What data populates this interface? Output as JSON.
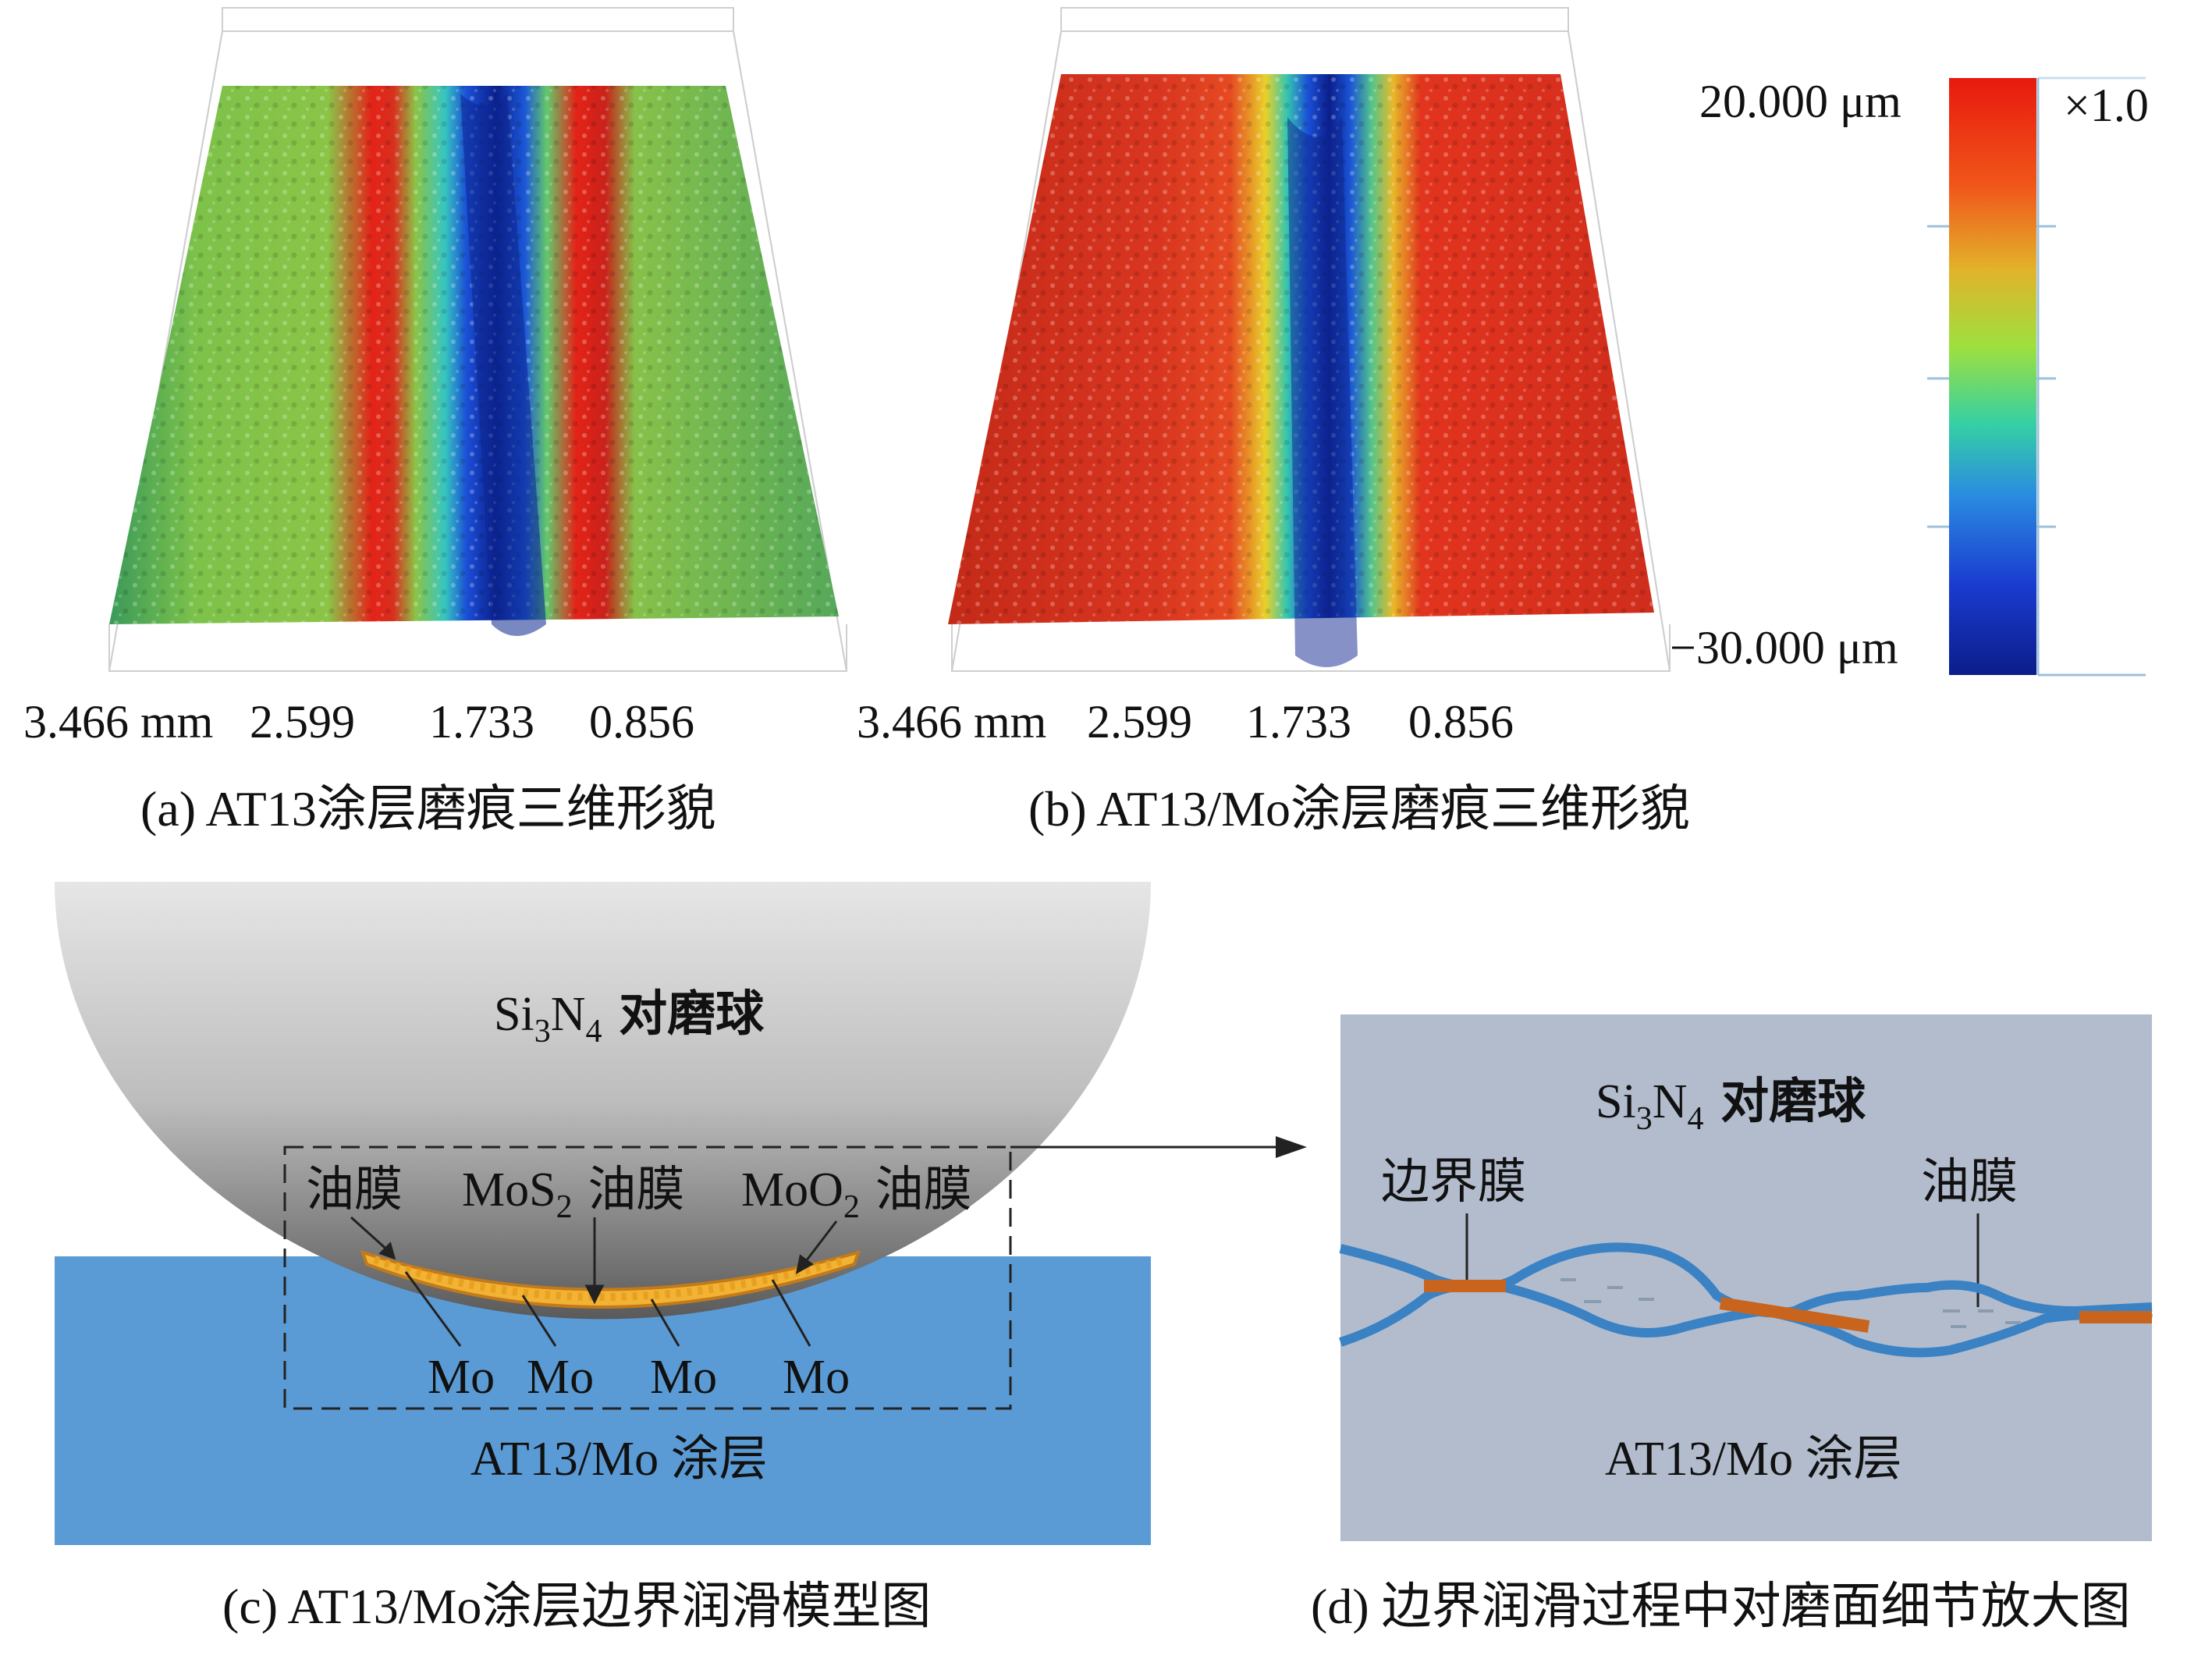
{
  "panel_a": {
    "axis_ticks": [
      "3.466 mm",
      "2.599",
      "1.733",
      "0.856"
    ],
    "caption": "(a) AT13涂层磨痕三维形貌"
  },
  "panel_b": {
    "axis_ticks": [
      "3.466 mm",
      "2.599",
      "1.733",
      "0.856"
    ],
    "caption": "(b) AT13/Mo涂层磨痕三维形貌"
  },
  "colorbar": {
    "max_label": "20.000 μm",
    "min_label": "−30.000 μm",
    "scale_label": "×1.0",
    "colors": [
      "#e8190e",
      "#f47b1c",
      "#e8d12a",
      "#8ee043",
      "#33c6a8",
      "#2a8be0",
      "#1a3bd0",
      "#0b1d8a"
    ]
  },
  "panel_c": {
    "ball_label_main": "Si",
    "ball_label_sub1": "3",
    "ball_label_mid": "N",
    "ball_label_sub2": "4",
    "ball_label_tail": " 对磨球",
    "oil_film_1": "油膜",
    "mos2_main": "MoS",
    "mos2_sub": "2",
    "oil_film_2": " 油膜",
    "moo2_main": "MoO",
    "moo2_sub": "2",
    "oil_film_3": " 油膜",
    "mo_labels": [
      "Mo",
      "Mo",
      "Mo",
      "Mo"
    ],
    "coating_label": "AT13/Mo 涂层",
    "caption": "(c) AT13/Mo涂层边界润滑模型图",
    "coating_color": "#5b9bd5",
    "film_color": "#f2b233"
  },
  "panel_d": {
    "ball_label_main": "Si",
    "ball_label_sub1": "3",
    "ball_label_mid": "N",
    "ball_label_sub2": "4",
    "ball_label_tail": " 对磨球",
    "boundary_film": "边界膜",
    "oil_film": "油膜",
    "coating_label": "AT13/Mo 涂层",
    "caption": "(d) 边界润滑过程中对磨面细节放大图",
    "background_color": "#b2bccd",
    "line_color": "#3a82c4",
    "contact_color": "#c8641e"
  }
}
